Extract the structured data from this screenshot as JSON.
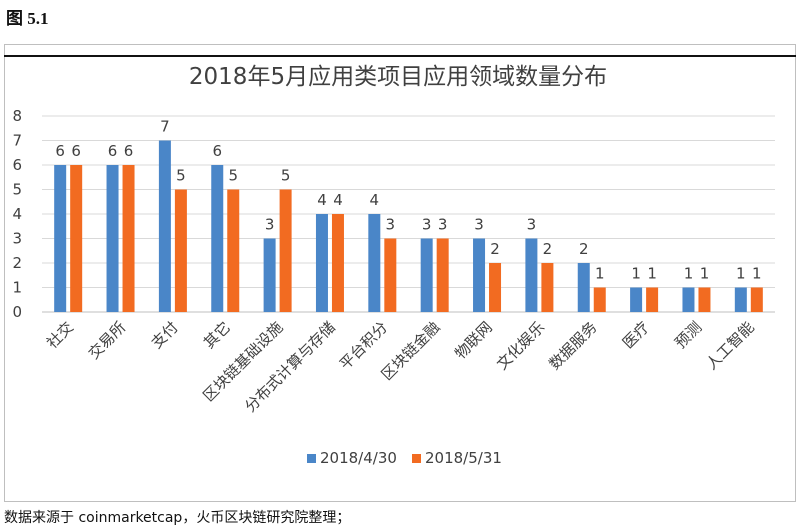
{
  "figure_label": "图 5.1",
  "source_note": "数据来源于 coinmarketcap，火币区块链研究院整理；",
  "colors": {
    "series1": "#4a86c8",
    "series2": "#f26b21",
    "grid": "#d9d9d9",
    "axis": "#bfbfbf",
    "text": "#404040"
  },
  "chart_data": {
    "type": "bar",
    "title": "2018年5月应用类项目应用领域数量分布",
    "xlabel": "",
    "ylabel": "",
    "ylim": [
      0,
      8
    ],
    "yticks": [
      0,
      1,
      2,
      3,
      4,
      5,
      6,
      7,
      8
    ],
    "grid": true,
    "legend_position": "bottom",
    "categories": [
      "社交",
      "交易所",
      "支付",
      "其它",
      "区块链基础设施",
      "分布式计算与存储",
      "平台积分",
      "区块链金融",
      "物联网",
      "文化娱乐",
      "数据服务",
      "医疗",
      "预测",
      "人工智能"
    ],
    "series": [
      {
        "name": "2018/4/30",
        "values": [
          6,
          6,
          7,
          6,
          3,
          4,
          4,
          3,
          3,
          3,
          2,
          1,
          1,
          1
        ]
      },
      {
        "name": "2018/5/31",
        "values": [
          6,
          6,
          5,
          5,
          5,
          4,
          3,
          3,
          2,
          2,
          1,
          1,
          1,
          1
        ]
      }
    ]
  }
}
